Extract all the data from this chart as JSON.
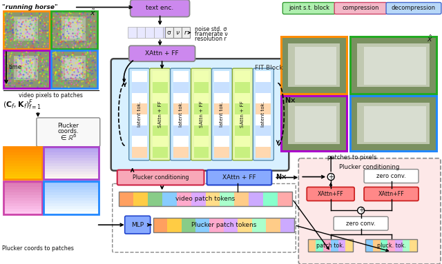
{
  "bg": "#ffffff",
  "legend": [
    {
      "label": "joint s.t. block",
      "fc": "#b0f0b0",
      "ec": "#339933"
    },
    {
      "label": "compression",
      "fc": "#f4b8c8",
      "ec": "#cc4466"
    },
    {
      "label": "decompression",
      "fc": "#b8d8f8",
      "ec": "#4466cc"
    }
  ],
  "text_enc_fc": "#cc88ee",
  "fit_fc": "#d8f0ff",
  "fit_ec": "#444444",
  "latent_fc": "#c8e8ff",
  "latent_ec": "#5588aa",
  "sattn_fc": "#e8f8b0",
  "sattn_ec": "#88aa33",
  "plucker_cond_fc": "#f8a8b8",
  "plucker_cond_ec": "#cc2244",
  "xattn_bot_fc": "#88aaff",
  "xattn_bot_ec": "#2244cc",
  "patch_panel_fc": "#fde8e8",
  "zero_conv_fc": "#ffffff",
  "xattn_red_fc": "#ff8888",
  "xattn_red_ec": "#cc2222",
  "mlp_fc": "#88aaff",
  "mlp_ec": "#2244cc",
  "sigma_box_fc": "#e8e8ff",
  "sigma_box_ec": "#888888",
  "video_bar_colors": [
    "#ffa060",
    "#ffcc44",
    "#88cc88",
    "#88ccff",
    "#ffaacc",
    "#ddaaff",
    "#ffdd88",
    "#aaffcc",
    "#ffcc88",
    "#ccaaff",
    "#88ffcc",
    "#ffaaaa"
  ],
  "plucker_bar_colors": [
    "#ffa060",
    "#ffcc44",
    "#88cc88",
    "#88ccff",
    "#ffaacc",
    "#ddaaff",
    "#ffdd88",
    "#aaffcc",
    "#ffcc88",
    "#ccaaff"
  ],
  "patch_tok_colors": [
    "#ffcc88",
    "#88ffcc",
    "#ffaacc",
    "#88ccff",
    "#ddaaff",
    "#ffdd88"
  ],
  "pluck_tok_colors": [
    "#88ccff",
    "#ffcc88",
    "#88ffcc",
    "#ffaacc",
    "#ddaaff",
    "#aaffcc",
    "#ffdd88"
  ]
}
